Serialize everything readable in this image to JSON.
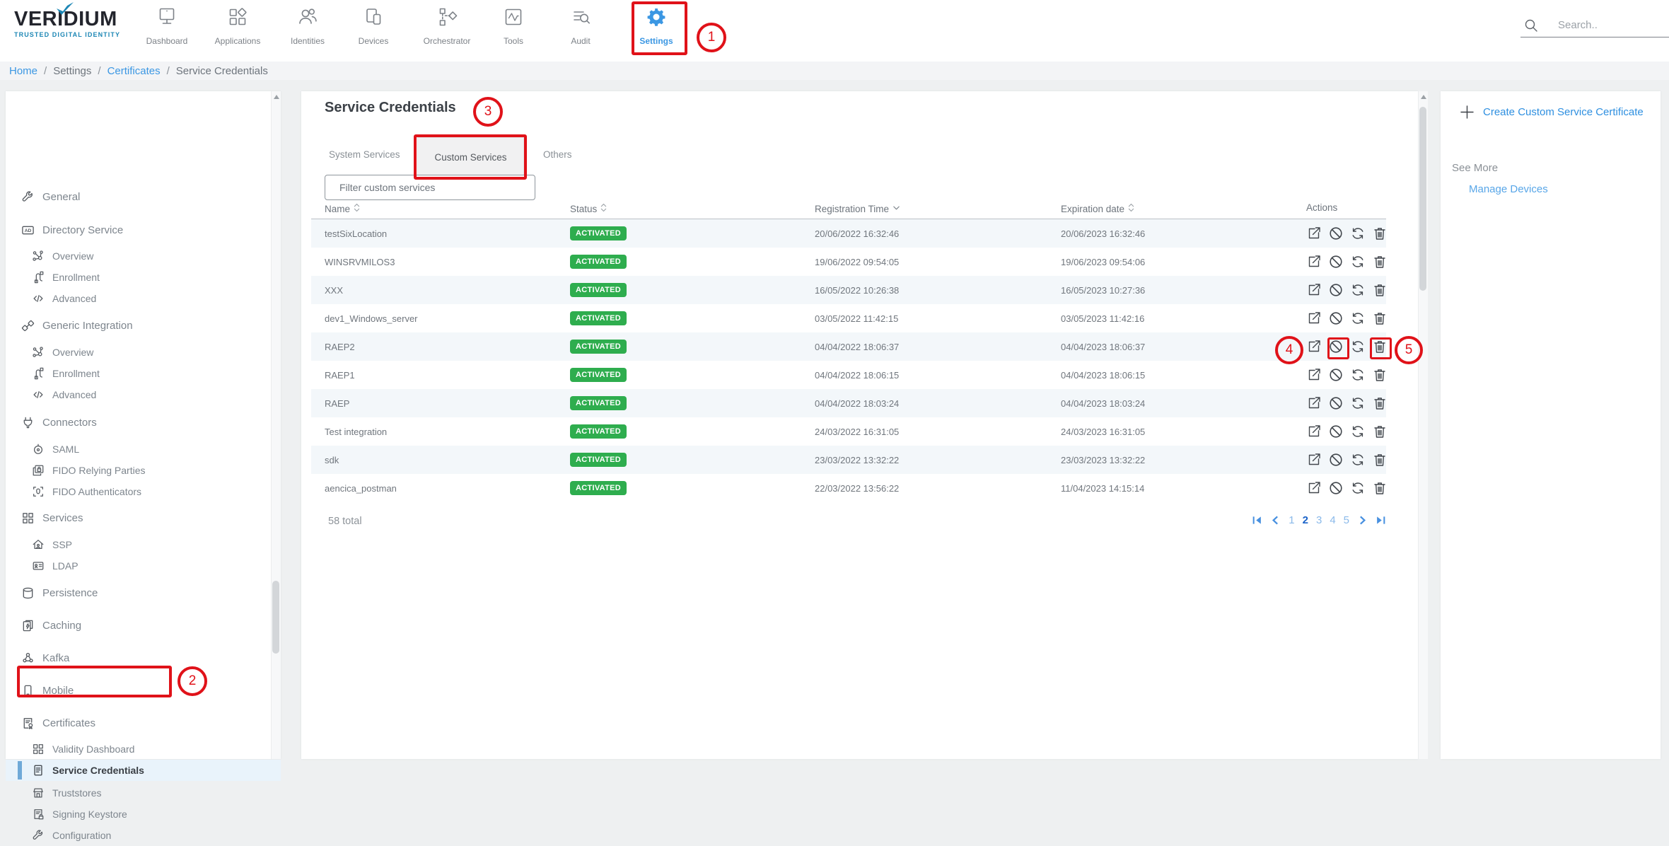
{
  "logo": {
    "brand": "VERIDIUM",
    "tagline": "TRUSTED DIGITAL IDENTITY"
  },
  "top_nav": {
    "items": [
      {
        "label": "Dashboard",
        "icon": "monitor",
        "active": false
      },
      {
        "label": "Applications",
        "icon": "apps",
        "active": false
      },
      {
        "label": "Identities",
        "icon": "people",
        "active": false
      },
      {
        "label": "Devices",
        "icon": "devices",
        "active": false
      },
      {
        "label": "Orchestrator",
        "icon": "orchestrator",
        "active": false
      },
      {
        "label": "Tools",
        "icon": "tools",
        "active": false
      },
      {
        "label": "Audit",
        "icon": "audit",
        "active": false
      },
      {
        "label": "Settings",
        "icon": "gear",
        "active": true
      }
    ],
    "search_placeholder": "Search.."
  },
  "breadcrumb": {
    "separator": "/",
    "items": [
      {
        "label": "Home",
        "link": true
      },
      {
        "label": "Settings",
        "link": false
      },
      {
        "label": "Certificates",
        "link": true
      },
      {
        "label": "Service Credentials",
        "link": false
      }
    ]
  },
  "sidebar": {
    "items": [
      {
        "label": "General",
        "icon": "wrench",
        "level": 1,
        "selected": false
      },
      {
        "label": "Directory Service",
        "icon": "ad-badge",
        "level": 1,
        "selected": false
      },
      {
        "label": "Overview",
        "icon": "nodes",
        "level": 2,
        "selected": false
      },
      {
        "label": "Enrollment",
        "icon": "flow",
        "level": 2,
        "selected": false
      },
      {
        "label": "Advanced",
        "icon": "code",
        "level": 2,
        "selected": false
      },
      {
        "label": "Generic Integration",
        "icon": "links",
        "level": 1,
        "selected": false
      },
      {
        "label": "Overview",
        "icon": "nodes",
        "level": 2,
        "selected": false
      },
      {
        "label": "Enrollment",
        "icon": "flow",
        "level": 2,
        "selected": false
      },
      {
        "label": "Advanced",
        "icon": "code",
        "level": 2,
        "selected": false
      },
      {
        "label": "Connectors",
        "icon": "plug",
        "level": 1,
        "selected": false
      },
      {
        "label": "SAML",
        "icon": "target",
        "level": 2,
        "selected": false
      },
      {
        "label": "FIDO Relying Parties",
        "icon": "card-lock",
        "level": 2,
        "selected": false
      },
      {
        "label": "FIDO Authenticators",
        "icon": "face-scan",
        "level": 2,
        "selected": false
      },
      {
        "label": "Services",
        "icon": "grid",
        "level": 1,
        "selected": false
      },
      {
        "label": "SSP",
        "icon": "home-user",
        "level": 2,
        "selected": false
      },
      {
        "label": "LDAP",
        "icon": "id-card",
        "level": 2,
        "selected": false
      },
      {
        "label": "Persistence",
        "icon": "database",
        "level": 1,
        "selected": false
      },
      {
        "label": "Caching",
        "icon": "clipboard-flash",
        "level": 1,
        "selected": false
      },
      {
        "label": "Kafka",
        "icon": "group",
        "level": 1,
        "selected": false
      },
      {
        "label": "Mobile",
        "icon": "phone",
        "level": 1,
        "selected": false
      },
      {
        "label": "Certificates",
        "icon": "certificate",
        "level": 1,
        "selected": false
      },
      {
        "label": "Validity Dashboard",
        "icon": "grid",
        "level": 2,
        "selected": false
      },
      {
        "label": "Service Credentials",
        "icon": "doc-lines",
        "level": 2,
        "selected": true
      },
      {
        "label": "Truststores",
        "icon": "store",
        "level": 2,
        "selected": false
      },
      {
        "label": "Signing Keystore",
        "icon": "doc-lock",
        "level": 2,
        "selected": false
      },
      {
        "label": "Configuration",
        "icon": "wrench",
        "level": 2,
        "selected": false
      }
    ]
  },
  "main": {
    "title": "Service Credentials",
    "tabs": [
      {
        "label": "System Services",
        "active": false
      },
      {
        "label": "Custom Services",
        "active": true
      },
      {
        "label": "Others",
        "active": false
      }
    ],
    "filter_placeholder": "Filter custom services",
    "table": {
      "columns": [
        {
          "label": "Name",
          "sort": "both"
        },
        {
          "label": "Status",
          "sort": "both"
        },
        {
          "label": "Registration Time",
          "sort": "desc"
        },
        {
          "label": "Expiration date",
          "sort": "both"
        },
        {
          "label": "Actions",
          "sort": "none"
        }
      ],
      "rows": [
        {
          "name": "testSixLocation",
          "status": "ACTIVATED",
          "registration_time": "20/06/2022 16:32:46",
          "expiration_date": "20/06/2023 16:32:46"
        },
        {
          "name": "WINSRVMILOS3",
          "status": "ACTIVATED",
          "registration_time": "19/06/2022 09:54:05",
          "expiration_date": "19/06/2023 09:54:06"
        },
        {
          "name": "XXX",
          "status": "ACTIVATED",
          "registration_time": "16/05/2022 10:26:38",
          "expiration_date": "16/05/2023 10:27:36"
        },
        {
          "name": "dev1_Windows_server",
          "status": "ACTIVATED",
          "registration_time": "03/05/2022 11:42:15",
          "expiration_date": "03/05/2023 11:42:16"
        },
        {
          "name": "RAEP2",
          "status": "ACTIVATED",
          "registration_time": "04/04/2022 18:06:37",
          "expiration_date": "04/04/2023 18:06:37"
        },
        {
          "name": "RAEP1",
          "status": "ACTIVATED",
          "registration_time": "04/04/2022 18:06:15",
          "expiration_date": "04/04/2023 18:06:15"
        },
        {
          "name": "RAEP",
          "status": "ACTIVATED",
          "registration_time": "04/04/2022 18:03:24",
          "expiration_date": "04/04/2023 18:03:24"
        },
        {
          "name": "Test integration",
          "status": "ACTIVATED",
          "registration_time": "24/03/2022 16:31:05",
          "expiration_date": "24/03/2023 16:31:05"
        },
        {
          "name": "sdk",
          "status": "ACTIVATED",
          "registration_time": "23/03/2022 13:32:22",
          "expiration_date": "23/03/2023 13:32:22"
        },
        {
          "name": "aencica_postman",
          "status": "ACTIVATED",
          "registration_time": "22/03/2022 13:56:22",
          "expiration_date": "11/04/2023 14:15:14"
        }
      ],
      "row_actions": [
        {
          "name": "export",
          "icon": "export"
        },
        {
          "name": "deactivate",
          "icon": "block"
        },
        {
          "name": "renew",
          "icon": "refresh"
        },
        {
          "name": "delete",
          "icon": "trash"
        }
      ]
    },
    "footer": {
      "total": "58 total",
      "pagination": {
        "pages": [
          "1",
          "2",
          "3",
          "4",
          "5"
        ],
        "current": "2"
      }
    }
  },
  "right_panel": {
    "create_link": "Create Custom Service Certificate",
    "see_more": "See More",
    "manage_link": "Manage Devices"
  },
  "annotations": {
    "markers": [
      {
        "label": "1",
        "target": "Settings navigation item"
      },
      {
        "label": "2",
        "target": "Service Credentials sidebar item"
      },
      {
        "label": "3",
        "target": "Custom Services tab"
      },
      {
        "label": "4",
        "target": "Deactivate action for RAEP2 row"
      },
      {
        "label": "5",
        "target": "Delete action for RAEP2 row"
      }
    ]
  },
  "colors": {
    "accent_blue": "#3b97e3",
    "status_green": "#2ead4e",
    "annotation_red": "#e01219",
    "brand_teal": "#1d87b5"
  }
}
